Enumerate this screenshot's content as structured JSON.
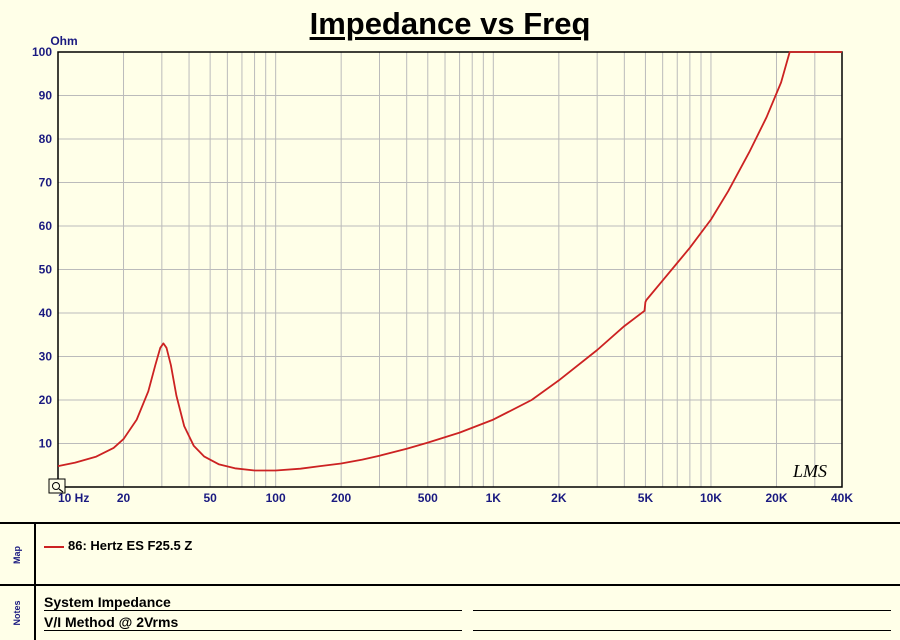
{
  "chart_data": {
    "type": "line",
    "title": "Impedance vs Freq",
    "ylabel": "Ohm",
    "xscale": "log",
    "xlim": [
      10,
      40000
    ],
    "ylim": [
      0,
      100
    ],
    "x_ticks": [
      10,
      20,
      50,
      100,
      200,
      500,
      1000,
      2000,
      5000,
      10000,
      20000,
      40000
    ],
    "x_tick_labels": [
      "10 Hz",
      "20",
      "50",
      "100",
      "200",
      "500",
      "1K",
      "2K",
      "5K",
      "10K",
      "20K",
      "40K"
    ],
    "y_ticks": [
      10,
      20,
      30,
      40,
      50,
      60,
      70,
      80,
      90,
      100
    ],
    "y_tick_labels": [
      "10",
      "20",
      "30",
      "40",
      "50",
      "60",
      "70",
      "80",
      "90",
      "100"
    ],
    "grid": true,
    "series": [
      {
        "name": "86: Hertz ES F25.5 Z",
        "color": "#cc2222",
        "x": [
          10,
          12,
          15,
          18,
          20,
          23,
          26,
          28,
          29.5,
          30.5,
          31.5,
          33,
          35,
          38,
          42,
          47,
          55,
          65,
          80,
          100,
          130,
          160,
          200,
          250,
          300,
          400,
          500,
          700,
          1000,
          1500,
          2000,
          3000,
          4000,
          4950,
          5000,
          5050,
          6000,
          7000,
          8000,
          10000,
          12000,
          15000,
          18000,
          21000,
          23000,
          26000,
          40000
        ],
        "y": [
          4.8,
          5.6,
          7,
          9,
          11,
          15.5,
          22,
          28,
          32,
          33,
          32,
          28,
          21,
          14,
          9.5,
          7,
          5.2,
          4.3,
          3.8,
          3.8,
          4.2,
          4.8,
          5.4,
          6.3,
          7.2,
          8.8,
          10.2,
          12.5,
          15.5,
          20,
          24.5,
          31.5,
          37,
          40.5,
          42.5,
          43,
          47.5,
          51.5,
          55,
          61.5,
          68,
          77,
          85,
          93,
          100,
          100,
          100
        ]
      }
    ],
    "watermark": "LMS"
  },
  "map": {
    "label": "Map",
    "legend_text": "86: Hertz ES F25.5 Z"
  },
  "notes": {
    "label": "Notes",
    "line1": "System Impedance",
    "line2": "V/I Method @ 2Vrms"
  },
  "colors": {
    "background": "#ffffe8",
    "grid": "#bbbbbb",
    "axis_label": "#1a1a80",
    "trace": "#cc2222"
  }
}
